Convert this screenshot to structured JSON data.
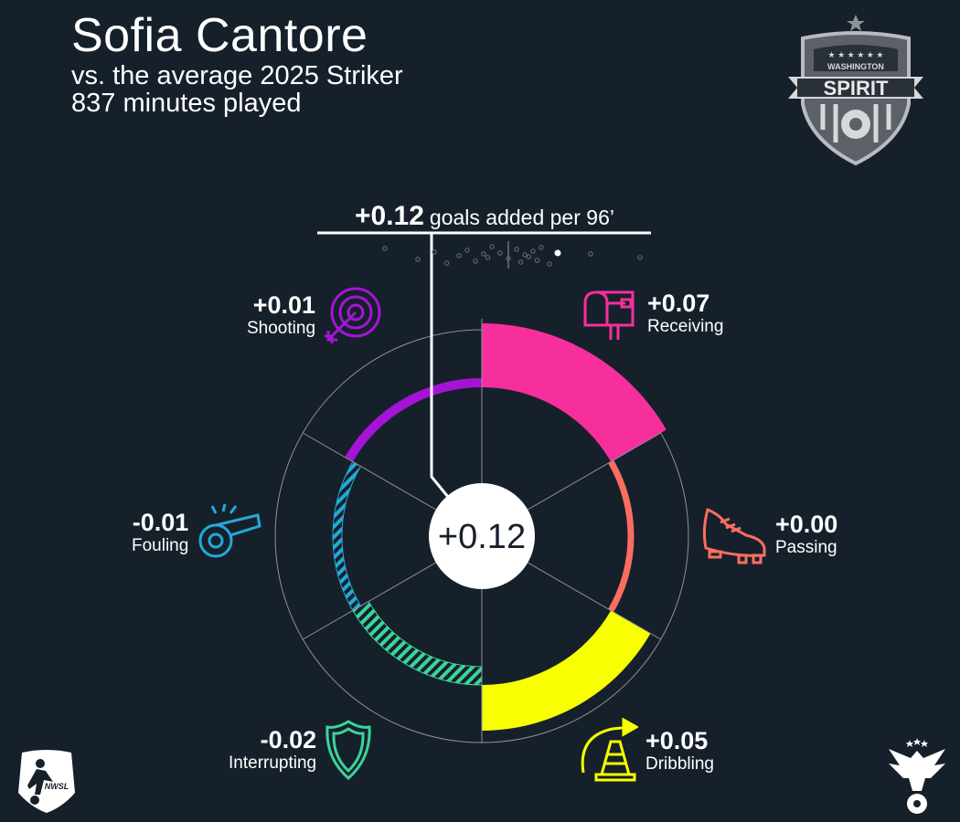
{
  "header": {
    "player_name": "Sofia Cantore",
    "comparison": "vs. the average 2025 Striker",
    "minutes": "837 minutes played"
  },
  "headline": {
    "value": "+0.12",
    "text": "goals added per 96’"
  },
  "center_value": "+0.12",
  "colors": {
    "background": "#16202b",
    "ring": "#8d9299",
    "Shooting": "#a514d6",
    "Receiving": "#f72f9c",
    "Passing": "#fa6e5f",
    "Dribbling": "#f7ff00",
    "Interrupting": "#3bd49a",
    "Fouling": "#23a9d9"
  },
  "icons": {
    "shooting": "target-icon",
    "receiving": "mailbox-icon",
    "passing": "cleat-icon",
    "dribbling": "cone-icon",
    "interrupting": "shield-icon",
    "fouling": "whistle-icon",
    "club": "washington-spirit-crest",
    "league": "nwsl-logo"
  },
  "logo_text": {
    "club_top": "WASHINGTON",
    "club_main": "SPIRIT",
    "league": "NWSL"
  },
  "chart_data": {
    "type": "radial-bar",
    "total_value": 0.12,
    "categories": [
      "Receiving",
      "Passing",
      "Dribbling",
      "Interrupting",
      "Fouling",
      "Shooting"
    ],
    "values": [
      0.07,
      0.0,
      0.05,
      -0.02,
      -0.01,
      0.01
    ],
    "labels": [
      "+0.07",
      "+0.00",
      "+0.05",
      "-0.02",
      "-0.01",
      "+0.01"
    ],
    "strip_plot": {
      "other_players": [
        -0.3,
        -0.22,
        -0.18,
        -0.15,
        -0.12,
        -0.1,
        -0.08,
        -0.06,
        -0.05,
        -0.04,
        -0.02,
        0.0,
        0.02,
        0.03,
        0.04,
        0.05,
        0.06,
        0.07,
        0.08,
        0.1,
        0.2,
        0.32
      ],
      "highlighted": 0.12
    }
  }
}
